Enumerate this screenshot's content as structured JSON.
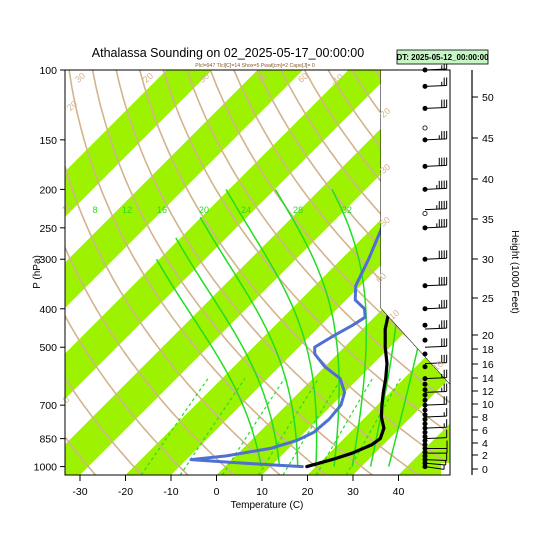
{
  "chart_data": {
    "type": "line",
    "title": "Athalassa Sounding on 02_2025-05-17_00:00:00",
    "subtitle": "Plcl=947 Tlcl[C]=14 Shox=5 Pwat[cm]=2 Cape[J]= 0",
    "badge": "DT: 2025-05-12_00:00:00",
    "xlabel": "Temperature (C)",
    "ylabel": "P (hPa)",
    "y2label": "Height (1000 Feet)",
    "xticks": [
      -30,
      -20,
      -10,
      0,
      10,
      20,
      30,
      40
    ],
    "pressure_ticks": [
      100,
      150,
      200,
      250,
      300,
      400,
      500,
      700,
      850,
      1000
    ],
    "height_ticks": [
      0,
      2,
      4,
      6,
      8,
      10,
      12,
      14,
      16,
      18,
      20,
      25,
      30,
      35,
      40,
      45,
      50
    ],
    "mixing_ratio_labels": [
      "8",
      "12",
      "16",
      "20",
      "24",
      "28",
      "32"
    ],
    "adiabat_labels": [
      "30",
      "20",
      "10",
      "0",
      "-10",
      "-20",
      "-30",
      "50",
      "60",
      "-10",
      "10",
      "20",
      "30",
      "40",
      "60",
      "80",
      "100",
      "120",
      "140",
      "160"
    ],
    "series": [
      {
        "name": "Temperature",
        "color": "#000000",
        "points": [
          [
            1000,
            18
          ],
          [
            960,
            22
          ],
          [
            925,
            25
          ],
          [
            880,
            27.5
          ],
          [
            850,
            28
          ],
          [
            800,
            26.5
          ],
          [
            750,
            23.5
          ],
          [
            700,
            21
          ],
          [
            650,
            18.5
          ],
          [
            600,
            16
          ],
          [
            550,
            13
          ],
          [
            500,
            9
          ],
          [
            450,
            5
          ],
          [
            400,
            1.5
          ],
          [
            350,
            -2.5
          ],
          [
            300,
            -7
          ],
          [
            250,
            -11.5
          ],
          [
            200,
            -15
          ],
          [
            175,
            -15.5
          ],
          [
            150,
            -13
          ],
          [
            130,
            -9
          ],
          [
            115,
            -3
          ],
          [
            100,
            4
          ]
        ]
      },
      {
        "name": "Dewpoint",
        "color": "#4f6fd2",
        "points": [
          [
            1000,
            17
          ],
          [
            990,
            10
          ],
          [
            975,
            0
          ],
          [
            960,
            -9
          ],
          [
            940,
            -2
          ],
          [
            900,
            6
          ],
          [
            860,
            10
          ],
          [
            820,
            12
          ],
          [
            760,
            12.5
          ],
          [
            700,
            12
          ],
          [
            650,
            10
          ],
          [
            600,
            6
          ],
          [
            560,
            0
          ],
          [
            520,
            -5
          ],
          [
            500,
            -6.5
          ],
          [
            470,
            -5
          ],
          [
            440,
            -3
          ],
          [
            420,
            -2
          ],
          [
            400,
            -4
          ],
          [
            380,
            -8
          ],
          [
            350,
            -11
          ],
          [
            300,
            -14
          ],
          [
            250,
            -18
          ],
          [
            220,
            -20
          ],
          [
            200,
            -22
          ],
          [
            180,
            -23.5
          ],
          [
            160,
            -25
          ],
          [
            140,
            -26
          ],
          [
            130,
            -25
          ],
          [
            120,
            -22
          ],
          [
            110,
            -18
          ],
          [
            100,
            -14
          ]
        ]
      }
    ],
    "wind_barbs": [
      {
        "p": 1000,
        "speed_kt": 5,
        "dir_deg": 300
      },
      {
        "p": 980,
        "speed_kt": 5,
        "dir_deg": 290
      },
      {
        "p": 960,
        "speed_kt": 10,
        "dir_deg": 280
      },
      {
        "p": 925,
        "speed_kt": 10,
        "dir_deg": 270
      },
      {
        "p": 900,
        "speed_kt": 10,
        "dir_deg": 270
      },
      {
        "p": 850,
        "speed_kt": 10,
        "dir_deg": 260
      },
      {
        "p": 800,
        "speed_kt": 15,
        "dir_deg": 260
      },
      {
        "p": 750,
        "speed_kt": 15,
        "dir_deg": 260
      },
      {
        "p": 700,
        "speed_kt": 20,
        "dir_deg": 260
      },
      {
        "p": 650,
        "speed_kt": 25,
        "dir_deg": 260
      },
      {
        "p": 600,
        "speed_kt": 25,
        "dir_deg": 260
      },
      {
        "p": 550,
        "speed_kt": 30,
        "dir_deg": 260
      },
      {
        "p": 500,
        "speed_kt": 30,
        "dir_deg": 260
      },
      {
        "p": 450,
        "speed_kt": 35,
        "dir_deg": 260
      },
      {
        "p": 400,
        "speed_kt": 35,
        "dir_deg": 260
      },
      {
        "p": 350,
        "speed_kt": 40,
        "dir_deg": 260
      },
      {
        "p": 300,
        "speed_kt": 40,
        "dir_deg": 260
      },
      {
        "p": 250,
        "speed_kt": 45,
        "dir_deg": 260
      },
      {
        "p": 225,
        "speed_kt": 45,
        "dir_deg": 260
      },
      {
        "p": 200,
        "speed_kt": 45,
        "dir_deg": 260
      },
      {
        "p": 175,
        "speed_kt": 40,
        "dir_deg": 260
      },
      {
        "p": 150,
        "speed_kt": 35,
        "dir_deg": 260
      },
      {
        "p": 125,
        "speed_kt": 30,
        "dir_deg": 260
      },
      {
        "p": 110,
        "speed_kt": 25,
        "dir_deg": 260
      },
      {
        "p": 100,
        "speed_kt": 25,
        "dir_deg": 260
      }
    ],
    "colors": {
      "band": "#9cf200",
      "adiabat": "#d2b48c",
      "moist": "#22dd22",
      "temp": "#000000",
      "dew": "#4f6fd2",
      "badge": "#c6f5c6"
    }
  }
}
